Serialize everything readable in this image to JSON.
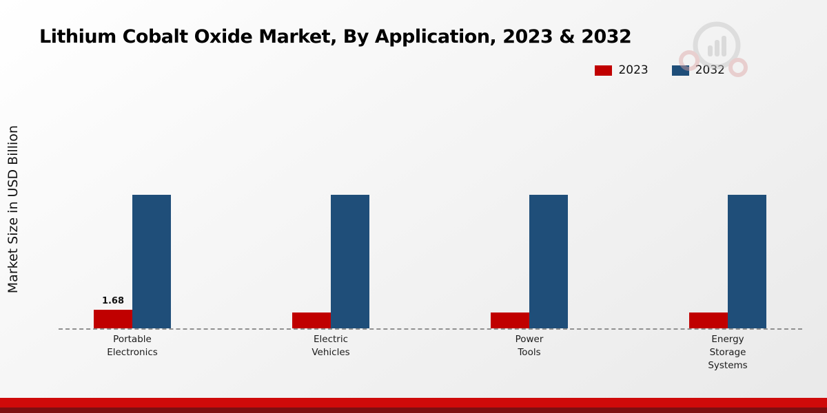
{
  "chart_data": {
    "type": "bar",
    "title": "Lithium Cobalt Oxide Market, By Application, 2023 & 2032",
    "ylabel": "Market Size in USD Billion",
    "categories": [
      "Portable Electronics",
      "Electric Vehicles",
      "Power Tools",
      "Energy Storage Systems"
    ],
    "series": [
      {
        "name": "2023",
        "color": "#c00000",
        "values": [
          1.68,
          1.4,
          1.45,
          1.4
        ],
        "labels": [
          "1.68",
          "",
          "",
          ""
        ]
      },
      {
        "name": "2032",
        "color": "#1f4e79",
        "values": [
          12,
          12,
          12,
          12
        ],
        "labels": [
          "",
          "",
          "",
          ""
        ]
      }
    ],
    "ylim": [
      0,
      12
    ],
    "grid": "off",
    "legend_position": "top-right",
    "baseline_style": "dashed"
  },
  "legend": [
    {
      "label": "2023",
      "color": "#c00000"
    },
    {
      "label": "2032",
      "color": "#1f4e79"
    }
  ],
  "colors": {
    "series_2023": "#c00000",
    "series_2032": "#1f4e79",
    "footer_red": "#cf0a0a",
    "footer_dark": "#7c0f12"
  }
}
